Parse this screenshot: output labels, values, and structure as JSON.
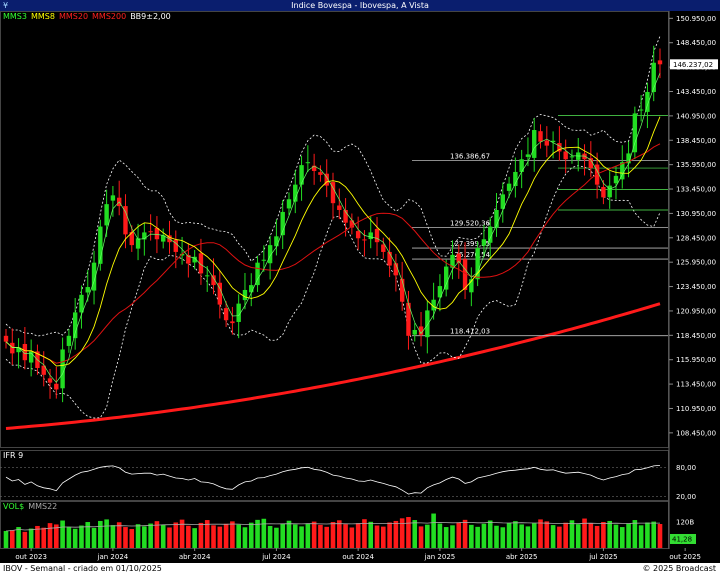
{
  "title": "Indice Bovespa - Ibovespa, A Vista",
  "menu_icon": "menu-icon",
  "legend_main": [
    {
      "label": "MMS3",
      "color": "#33ff33"
    },
    {
      "label": "MMS8",
      "color": "#ffff00"
    },
    {
      "label": "MMS20",
      "color": "#ff2020"
    },
    {
      "label": "MMS200",
      "color": "#ff2020"
    },
    {
      "label": "BB9±2,00",
      "color": "#ffffff"
    }
  ],
  "ifr_label": "IFR 9",
  "vol_legend": [
    {
      "label": "VOL$",
      "color": "#33ff33"
    },
    {
      "label": "MMS22",
      "color": "#aaaaaa"
    }
  ],
  "footer": {
    "left": "IBOV - Semanal - criado em 01/10/2025",
    "right": "© 2025 Broadcast"
  },
  "colors": {
    "up": "#22dd22",
    "down": "#ff1a1a",
    "grid": "#333333",
    "level": "#bbbbbb",
    "last_price_box": "#ffffff"
  },
  "chart_data": {
    "type": "candlestick",
    "price_axis": {
      "ticks": [
        "150.950,00",
        "148.450,00",
        "145.950,00",
        "143.450,00",
        "140.950,00",
        "138.450,00",
        "135.950,00",
        "133.450,00",
        "130.950,00",
        "128.450,00",
        "125.950,00",
        "123.450,00",
        "120.950,00",
        "118.450,00",
        "115.950,00",
        "113.450,00",
        "110.950,00",
        "108.450,00"
      ],
      "tick_values": [
        150950,
        148450,
        145950,
        143450,
        140950,
        138450,
        135950,
        133450,
        130950,
        128450,
        125950,
        123450,
        120950,
        118450,
        115950,
        113450,
        110950,
        108450
      ],
      "ylim": [
        107000,
        151600
      ]
    },
    "last_price": {
      "label": "146.237,02",
      "value": 146237
    },
    "x_labels": [
      "out 2023",
      "jan 2024",
      "abr 2024",
      "jul 2024",
      "out 2024",
      "jan 2025",
      "abr 2025",
      "jul 2025",
      "out 2025"
    ],
    "x_label_weeks": [
      4,
      17,
      30,
      43,
      56,
      69,
      82,
      95,
      108
    ],
    "levels": [
      {
        "label": "136.386,67",
        "value": 136387
      },
      {
        "label": "129.520,36",
        "value": 129520
      },
      {
        "label": "127.399,35",
        "value": 127399
      },
      {
        "label": "126.270,54",
        "value": 126270
      },
      {
        "label": "118.412,03",
        "value": 118412
      }
    ],
    "closes": [
      117800,
      116600,
      117200,
      115900,
      116800,
      115100,
      114400,
      113600,
      112900,
      117000,
      118400,
      120800,
      122600,
      123400,
      125900,
      129600,
      131900,
      132800,
      131700,
      128800,
      127700,
      128400,
      129000,
      129100,
      128300,
      128700,
      128000,
      127000,
      126800,
      125800,
      126500,
      124800,
      124600,
      123600,
      121600,
      120000,
      119700,
      121700,
      123100,
      123600,
      125900,
      126200,
      127700,
      128600,
      131100,
      132400,
      133900,
      135900,
      136200,
      135300,
      134900,
      133800,
      132000,
      131300,
      130000,
      129500,
      128400,
      128200,
      129000,
      128000,
      127000,
      125600,
      124600,
      121900,
      118400,
      119000,
      118500,
      121000,
      122100,
      123500,
      125500,
      126700,
      125900,
      123100,
      124200,
      127400,
      128300,
      129600,
      131300,
      132900,
      134000,
      135200,
      136500,
      137000,
      139500,
      138300,
      137900,
      138400,
      137300,
      136500,
      136800,
      137200,
      136500,
      135600,
      133900,
      132600,
      133800,
      134800,
      136200,
      137100,
      141200,
      141600,
      143400,
      146400,
      146237
    ],
    "ifr_values": [
      60,
      52,
      55,
      45,
      50,
      42,
      38,
      36,
      32,
      48,
      56,
      64,
      70,
      72,
      76,
      80,
      82,
      83,
      79,
      70,
      66,
      67,
      68,
      68,
      64,
      66,
      62,
      58,
      57,
      54,
      57,
      50,
      49,
      46,
      40,
      36,
      35,
      44,
      50,
      52,
      58,
      59,
      63,
      66,
      71,
      74,
      76,
      79,
      80,
      76,
      74,
      70,
      64,
      62,
      58,
      56,
      52,
      51,
      54,
      50,
      47,
      43,
      40,
      33,
      25,
      28,
      27,
      38,
      44,
      48,
      55,
      60,
      56,
      47,
      50,
      58,
      61,
      64,
      68,
      71,
      73,
      74,
      76,
      77,
      80,
      76,
      74,
      75,
      71,
      68,
      69,
      70,
      67,
      64,
      58,
      54,
      58,
      61,
      65,
      67,
      75,
      76,
      79,
      83,
      84
    ],
    "ifr_axis": {
      "ticks": [
        "80,00",
        "20,00"
      ],
      "tick_values": [
        80,
        20
      ],
      "ylim": [
        15,
        95
      ]
    },
    "volume_values": [
      7.8,
      8.2,
      9.6,
      7.4,
      8.9,
      10.1,
      9.3,
      11.4,
      10.8,
      12.6,
      9.7,
      8.8,
      10.3,
      11.9,
      9.2,
      12.4,
      13.1,
      10.5,
      11.8,
      9.6,
      8.7,
      10.9,
      9.9,
      11.2,
      12.3,
      10.6,
      9.4,
      11.7,
      13.0,
      10.2,
      9.1,
      11.5,
      12.8,
      10.4,
      9.8,
      11.1,
      12.2,
      10.7,
      9.5,
      11.6,
      12.9,
      13.4,
      10.1,
      9.3,
      11.0,
      12.5,
      10.8,
      9.9,
      11.3,
      12.1,
      10.6,
      9.7,
      11.9,
      12.7,
      10.9,
      9.4,
      11.4,
      13.2,
      12.0,
      10.3,
      9.8,
      11.7,
      12.4,
      13.6,
      14.2,
      12.8,
      9.9,
      10.7,
      15.8,
      11.2,
      9.6,
      10.4,
      11.8,
      12.9,
      10.6,
      9.7,
      11.1,
      12.6,
      10.2,
      9.5,
      11.5,
      12.3,
      10.8,
      9.9,
      11.4,
      13.1,
      12.2,
      10.5,
      9.8,
      11.6,
      12.7,
      10.9,
      13.5,
      11.3,
      10.1,
      11.9,
      12.4,
      10.7,
      9.6,
      11.2,
      12.8,
      10.4,
      11.7,
      12.1,
      11.0
    ],
    "volume_axis": {
      "ticks": [
        "120B",
        "41,28"
      ],
      "tick_values": [
        12.0,
        4.128
      ],
      "ylim": [
        0,
        16.5
      ]
    }
  }
}
